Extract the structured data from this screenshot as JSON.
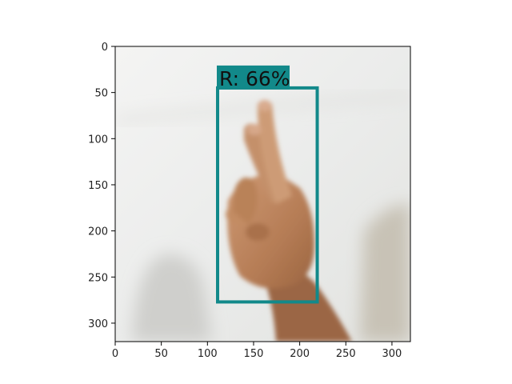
{
  "figure": {
    "x_ticks": [
      "0",
      "50",
      "100",
      "150",
      "200",
      "250",
      "300"
    ],
    "y_ticks": [
      "0",
      "50",
      "100",
      "150",
      "200",
      "250",
      "300"
    ],
    "image_extent": {
      "width": 320,
      "height": 320
    }
  },
  "detection": {
    "label": "R: 66%",
    "class": "R",
    "confidence": 0.66,
    "box_data": {
      "x_min": 111,
      "y_min": 45,
      "x_max": 219,
      "y_max": 277
    },
    "color": "#12898a"
  },
  "colors": {
    "background_wall": "#ebeceb",
    "skin": "#c08a62",
    "shadow": "#cfcfcc"
  },
  "icons": {
    "hand": "hand-sign-r-photo"
  }
}
